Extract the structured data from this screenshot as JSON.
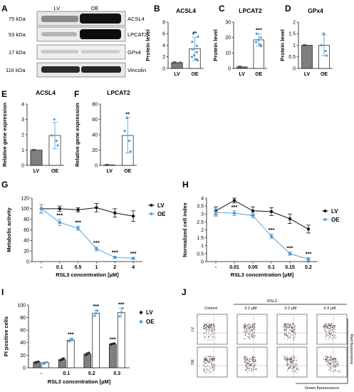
{
  "colors": {
    "lv": "#7f7f7f",
    "oe_line": "#5aa0d6",
    "oe_point": "#4a9bdb",
    "black": "#111111",
    "gate": "#e4595b"
  },
  "panel_letters": [
    "A",
    "B",
    "C",
    "D",
    "E",
    "F",
    "G",
    "H",
    "I",
    "J"
  ],
  "blot": {
    "columns": [
      "LV",
      "OE"
    ],
    "rows": [
      {
        "kda": "75 kDa",
        "protein": "ACSL4"
      },
      {
        "kda": "53 kDa",
        "protein": "LPCAT2"
      },
      {
        "kda": "17 kDa",
        "protein": "GPx4"
      },
      {
        "kda": "116 kDa",
        "protein": "Vinculin"
      }
    ]
  },
  "chart_data": [
    {
      "id": "B",
      "type": "bar",
      "title": "ACSL4",
      "ylabel": "Protein level",
      "categories": [
        "LV",
        "OE"
      ],
      "values": [
        1.0,
        3.4
      ],
      "errors": [
        0,
        2.0
      ],
      "ylim": [
        0,
        8
      ],
      "yticks": [
        0,
        2,
        4,
        6,
        8
      ],
      "points": [
        [
          1,
          1,
          1,
          1,
          1,
          1,
          1,
          1
        ],
        [
          1.4,
          1.6,
          2.0,
          2.3,
          2.8,
          3.3,
          3.9,
          4.6,
          5.5,
          6.0
        ]
      ],
      "sig": [
        "",
        "**"
      ]
    },
    {
      "id": "C",
      "type": "bar",
      "title": "LPCAT2",
      "ylabel": "Protein level",
      "categories": [
        "LV",
        "OE"
      ],
      "values": [
        1.0,
        18.5
      ],
      "errors": [
        0,
        4.0
      ],
      "ylim": [
        0,
        30
      ],
      "yticks": [
        0,
        10,
        20,
        30
      ],
      "points": [
        [
          1,
          1,
          1,
          1,
          1
        ],
        [
          14.5,
          15.5,
          17,
          18.5,
          20,
          22.5
        ]
      ],
      "sig": [
        "",
        "***"
      ]
    },
    {
      "id": "D",
      "type": "bar",
      "title": "GPx4",
      "ylabel": "Protein level",
      "categories": [
        "LV",
        "OE"
      ],
      "values": [
        1.0,
        1.0
      ],
      "errors": [
        0,
        0.45
      ],
      "ylim": [
        0,
        2.0
      ],
      "yticks": [
        0,
        0.5,
        1.0,
        1.5,
        2.0
      ],
      "points": [
        [
          1,
          1,
          1,
          1
        ],
        [
          0.55,
          0.75,
          1.0,
          1.5
        ]
      ],
      "sig": [
        "",
        ""
      ]
    },
    {
      "id": "E",
      "type": "bar",
      "title": "ACSL4",
      "ylabel": "Relative gene expression",
      "categories": [
        "LV",
        "OE"
      ],
      "values": [
        1.0,
        1.95
      ],
      "errors": [
        0,
        0.85
      ],
      "ylim": [
        0,
        4
      ],
      "yticks": [
        0,
        1,
        2,
        3,
        4
      ],
      "points": [
        [
          1,
          1,
          1,
          1
        ],
        [
          1.3,
          1.6,
          1.95,
          3.0
        ]
      ],
      "sig": [
        "",
        ""
      ]
    },
    {
      "id": "F",
      "type": "bar",
      "title": "LPCAT2",
      "ylabel": "Relative gene expression",
      "categories": [
        "LV",
        "OE"
      ],
      "values": [
        0.5,
        39
      ],
      "errors": [
        0,
        23
      ],
      "ylim": [
        0,
        80
      ],
      "yticks": [
        0,
        20,
        40,
        60,
        80
      ],
      "points": [
        [
          0.5,
          0.5,
          0.5,
          0.5
        ],
        [
          18,
          32,
          45,
          62
        ]
      ],
      "sig": [
        "",
        "**"
      ]
    },
    {
      "id": "G",
      "type": "line",
      "xlabel": "RSL3 concentration [µM]",
      "ylabel": "Metabolic activity",
      "categories": [
        "-",
        "0.1",
        "0.5",
        "1",
        "2",
        "4"
      ],
      "ylim": [
        0,
        120
      ],
      "yticks": [
        0,
        20,
        40,
        60,
        80,
        100,
        120
      ],
      "series": [
        {
          "name": "LV",
          "values": [
            100,
            100,
            98,
            102,
            92,
            86
          ],
          "errors": [
            8,
            5,
            4,
            8,
            8,
            10
          ]
        },
        {
          "name": "OE",
          "values": [
            100,
            74,
            63,
            24,
            8,
            6
          ],
          "errors": [
            8,
            6,
            4,
            4,
            2,
            2
          ]
        }
      ],
      "sig": [
        "",
        "***",
        "***",
        "***",
        "***",
        "***"
      ]
    },
    {
      "id": "H",
      "type": "line",
      "xlabel": "RSL3 concentration [µM]",
      "ylabel": "Normalized cell index",
      "categories": [
        "-",
        "0.01",
        "0.05",
        "0.1",
        "0.15",
        "0.2"
      ],
      "ylim": [
        0,
        4.0
      ],
      "yticks": [
        0,
        0.5,
        1.0,
        1.5,
        2.0,
        2.5,
        3.0,
        3.5,
        4.0
      ],
      "series": [
        {
          "name": "LV",
          "values": [
            3.2,
            3.85,
            3.2,
            3.15,
            2.7,
            2.05
          ],
          "errors": [
            0.25,
            0.15,
            0.25,
            0.25,
            0.3,
            0.25
          ]
        },
        {
          "name": "OE",
          "values": [
            3.1,
            3.05,
            2.9,
            1.6,
            0.5,
            0.15
          ],
          "errors": [
            0.25,
            0.15,
            0.15,
            0.15,
            0.1,
            0.1
          ]
        }
      ],
      "sig": [
        "",
        "***",
        "",
        "***",
        "***",
        "***"
      ]
    },
    {
      "id": "I",
      "type": "bar",
      "xlabel": "RSL3 concentration [µM]",
      "ylabel": "PI positive cells",
      "categories": [
        "-",
        "0.1",
        "0.2",
        "0.3"
      ],
      "ylim": [
        0,
        100
      ],
      "yticks": [
        0,
        20,
        40,
        60,
        80,
        100
      ],
      "series": [
        {
          "name": "LV",
          "values": [
            9,
            13,
            22,
            38
          ],
          "errors": [
            1,
            2,
            2,
            1
          ],
          "points": [
            [
              8,
              9,
              10
            ],
            [
              12,
              13,
              15
            ],
            [
              20,
              22,
              24
            ],
            [
              37,
              38,
              39
            ]
          ]
        },
        {
          "name": "OE",
          "values": [
            8,
            44,
            87,
            88
          ],
          "errors": [
            1,
            3,
            5,
            7
          ],
          "points": [
            [
              6,
              8,
              9
            ],
            [
              42,
              44,
              46
            ],
            [
              83,
              87,
              91
            ],
            [
              82,
              88,
              95
            ]
          ]
        }
      ],
      "sig_lv": [
        "",
        "",
        "",
        "***"
      ],
      "sig_oe": [
        "",
        "***",
        "***",
        "***"
      ]
    }
  ],
  "flow": {
    "rsl3": "RSL3",
    "columns": [
      "Control",
      "0.1 µM",
      "0.2 µM",
      "0.3 µM"
    ],
    "rows": [
      "LV",
      "OE"
    ],
    "red_axis": "Red fluorescence",
    "green_axis": "Green fluorescence"
  }
}
